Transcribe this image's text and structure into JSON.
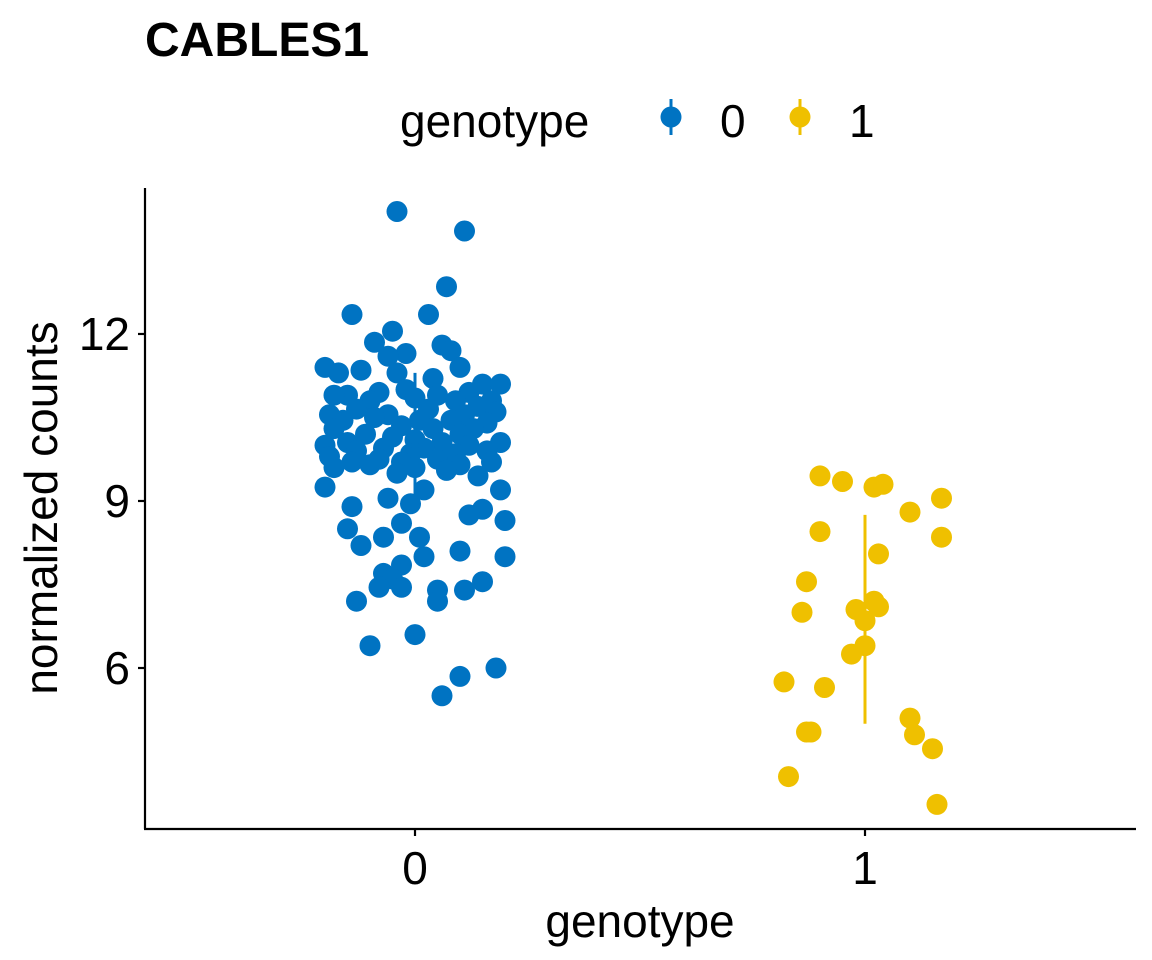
{
  "chart_data": {
    "type": "scatter",
    "title": "CABLES1",
    "xlabel": "genotype",
    "ylabel": "normalized counts",
    "categories": [
      "0",
      "1"
    ],
    "ylim": [
      3.0,
      14.5
    ],
    "yticks": [
      6,
      9,
      12
    ],
    "ytick_labels": [
      "6",
      "9",
      "12"
    ],
    "legend": {
      "title": "genotype",
      "position": "top",
      "entries": [
        "0",
        "1"
      ]
    },
    "grid": false,
    "colors": {
      "0": "#0073C2",
      "1": "#EFC000"
    },
    "series": [
      {
        "name": "0",
        "category": "0",
        "color": "#0073C2",
        "summary": {
          "mean": 10.0,
          "low": 9.0,
          "high": 11.3
        },
        "points": [
          [
            -0.04,
            14.2
          ],
          [
            0.11,
            13.85
          ],
          [
            0.07,
            12.85
          ],
          [
            0.03,
            12.35
          ],
          [
            -0.14,
            12.35
          ],
          [
            -0.05,
            12.05
          ],
          [
            -0.09,
            11.85
          ],
          [
            0.06,
            11.8
          ],
          [
            0.08,
            11.7
          ],
          [
            -0.02,
            11.65
          ],
          [
            -0.06,
            11.6
          ],
          [
            -0.2,
            11.4
          ],
          [
            -0.12,
            11.35
          ],
          [
            0.1,
            11.4
          ],
          [
            -0.17,
            11.3
          ],
          [
            -0.04,
            11.3
          ],
          [
            0.04,
            11.2
          ],
          [
            0.15,
            11.1
          ],
          [
            0.19,
            11.1
          ],
          [
            -0.02,
            11.0
          ],
          [
            -0.08,
            10.95
          ],
          [
            0.05,
            10.9
          ],
          [
            0.12,
            10.95
          ],
          [
            -0.15,
            10.9
          ],
          [
            -0.18,
            10.9
          ],
          [
            0.0,
            10.85
          ],
          [
            0.09,
            10.8
          ],
          [
            0.17,
            10.8
          ],
          [
            -0.1,
            10.8
          ],
          [
            0.14,
            10.7
          ],
          [
            0.03,
            10.65
          ],
          [
            -0.13,
            10.65
          ],
          [
            -0.19,
            10.55
          ],
          [
            -0.06,
            10.55
          ],
          [
            0.11,
            10.55
          ],
          [
            0.18,
            10.6
          ],
          [
            0.01,
            10.45
          ],
          [
            -0.16,
            10.45
          ],
          [
            -0.09,
            10.5
          ],
          [
            0.08,
            10.45
          ],
          [
            0.16,
            10.4
          ],
          [
            -0.03,
            10.35
          ],
          [
            0.04,
            10.3
          ],
          [
            -0.18,
            10.3
          ],
          [
            0.13,
            10.3
          ],
          [
            -0.11,
            10.2
          ],
          [
            0.1,
            10.2
          ],
          [
            -0.05,
            10.15
          ],
          [
            0.19,
            10.05
          ],
          [
            0.0,
            10.1
          ],
          [
            -0.15,
            10.05
          ],
          [
            0.06,
            10.05
          ],
          [
            -0.2,
            10.0
          ],
          [
            0.12,
            10.0
          ],
          [
            -0.07,
            9.95
          ],
          [
            0.02,
            9.95
          ],
          [
            -0.13,
            9.9
          ],
          [
            0.16,
            9.9
          ],
          [
            -0.01,
            9.85
          ],
          [
            0.09,
            9.85
          ],
          [
            -0.19,
            9.8
          ],
          [
            -0.08,
            9.75
          ],
          [
            0.05,
            9.75
          ],
          [
            -0.14,
            9.7
          ],
          [
            0.17,
            9.7
          ],
          [
            -0.03,
            9.7
          ],
          [
            -0.1,
            9.65
          ],
          [
            0.1,
            9.65
          ],
          [
            -0.18,
            9.6
          ],
          [
            0.0,
            9.6
          ],
          [
            0.07,
            9.55
          ],
          [
            -0.04,
            9.5
          ],
          [
            0.14,
            9.45
          ],
          [
            -0.2,
            9.25
          ],
          [
            0.19,
            9.2
          ],
          [
            0.02,
            9.2
          ],
          [
            -0.06,
            9.05
          ],
          [
            -0.01,
            8.95
          ],
          [
            -0.14,
            8.9
          ],
          [
            0.15,
            8.85
          ],
          [
            0.12,
            8.75
          ],
          [
            0.2,
            8.65
          ],
          [
            -0.03,
            8.6
          ],
          [
            -0.15,
            8.5
          ],
          [
            -0.07,
            8.35
          ],
          [
            0.01,
            8.35
          ],
          [
            -0.12,
            8.2
          ],
          [
            0.1,
            8.1
          ],
          [
            0.2,
            8.0
          ],
          [
            0.02,
            8.0
          ],
          [
            -0.03,
            7.85
          ],
          [
            -0.07,
            7.7
          ],
          [
            -0.05,
            7.6
          ],
          [
            0.15,
            7.55
          ],
          [
            -0.03,
            7.45
          ],
          [
            -0.08,
            7.45
          ],
          [
            0.05,
            7.4
          ],
          [
            0.11,
            7.4
          ],
          [
            0.05,
            7.2
          ],
          [
            -0.13,
            7.2
          ],
          [
            0.0,
            6.6
          ],
          [
            -0.1,
            6.4
          ],
          [
            0.18,
            6.0
          ],
          [
            0.1,
            5.85
          ],
          [
            0.06,
            5.5
          ]
        ]
      },
      {
        "name": "1",
        "category": "1",
        "color": "#EFC000",
        "summary": {
          "mean": 6.9,
          "low": 5.0,
          "high": 8.75
        },
        "points": [
          [
            -0.1,
            9.45
          ],
          [
            -0.05,
            9.35
          ],
          [
            0.02,
            9.25
          ],
          [
            0.04,
            9.3
          ],
          [
            0.17,
            9.05
          ],
          [
            0.1,
            8.8
          ],
          [
            0.17,
            8.35
          ],
          [
            -0.1,
            8.45
          ],
          [
            0.03,
            8.05
          ],
          [
            -0.13,
            7.55
          ],
          [
            -0.14,
            7.0
          ],
          [
            -0.02,
            7.05
          ],
          [
            0.02,
            7.2
          ],
          [
            0.03,
            7.1
          ],
          [
            0.0,
            6.85
          ],
          [
            0.0,
            6.4
          ],
          [
            -0.03,
            6.25
          ],
          [
            -0.09,
            5.65
          ],
          [
            -0.18,
            5.75
          ],
          [
            0.1,
            5.1
          ],
          [
            -0.12,
            4.85
          ],
          [
            -0.13,
            4.85
          ],
          [
            0.11,
            4.8
          ],
          [
            0.15,
            4.55
          ],
          [
            -0.17,
            4.05
          ],
          [
            0.16,
            3.55
          ]
        ]
      }
    ]
  }
}
